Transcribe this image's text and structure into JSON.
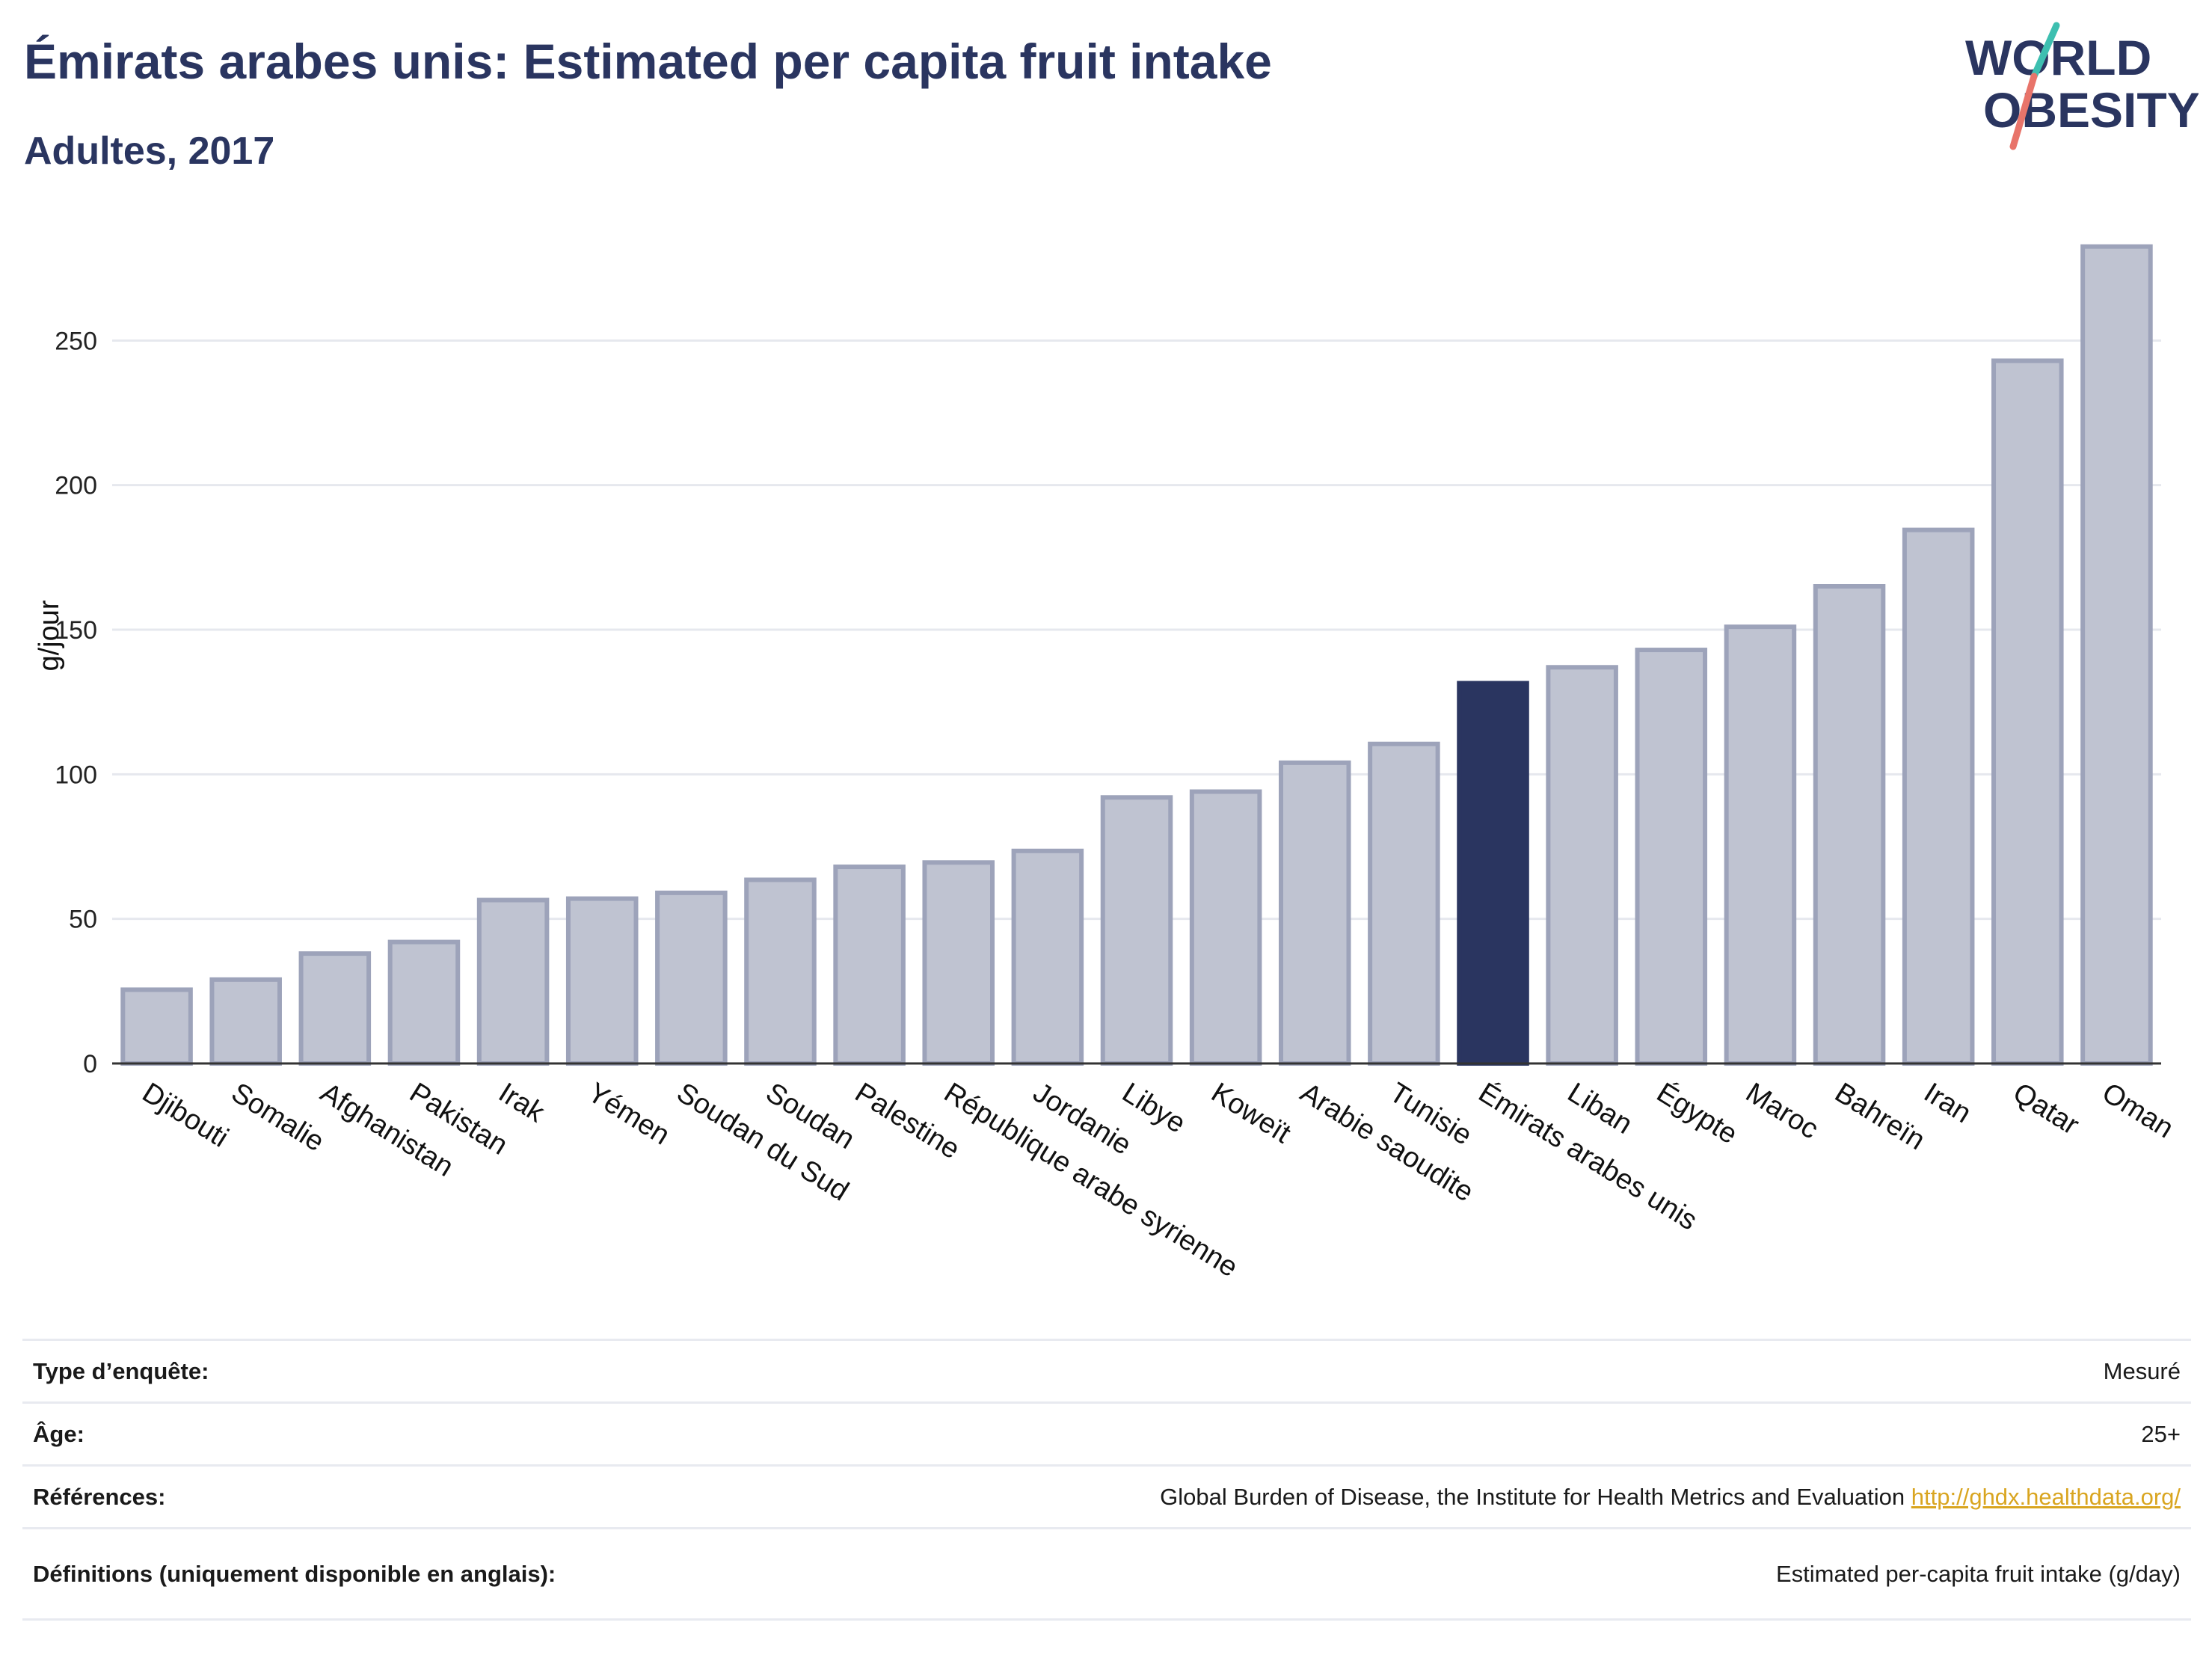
{
  "title": "Émirats arabes unis: Estimated per capita fruit intake",
  "subtitle": "Adultes, 2017",
  "logo": {
    "line1": "WORLD",
    "line2": "OBESITY",
    "slash_colors": [
      "#3dbfb0",
      "#e8746a"
    ],
    "text_color": "#2a3560"
  },
  "colors": {
    "bar_fill": "#bfc3d1",
    "bar_stroke": "#9da3ba",
    "highlight": "#2a3560",
    "grid": "#e6e8ee",
    "axis": "#333333"
  },
  "chart_data": {
    "type": "bar",
    "title": "",
    "xlabel": "",
    "ylabel": "g/jour",
    "ylim": [
      0,
      285
    ],
    "yticks": [
      0,
      50,
      100,
      150,
      200,
      250
    ],
    "grid": true,
    "highlight": "Émirats arabes unis",
    "categories": [
      "Djibouti",
      "Somalie",
      "Afghanistan",
      "Pakistan",
      "Irak",
      "Yémen",
      "Soudan du Sud",
      "Soudan",
      "Palestine",
      "République arabe syrienne",
      "Jordanie",
      "Libye",
      "Koweït",
      "Arabie saoudite",
      "Tunisie",
      "Émirats arabes unis",
      "Liban",
      "Égypte",
      "Maroc",
      "Bahreïn",
      "Iran",
      "Qatar",
      "Oman"
    ],
    "values": [
      25.5,
      29,
      38,
      42,
      56.5,
      57,
      59,
      63.5,
      68,
      69.5,
      73.5,
      92,
      94,
      104,
      110.5,
      131.5,
      137,
      143,
      151,
      165,
      184.5,
      243,
      282.5
    ]
  },
  "info_rows": [
    {
      "key": "Type d’enquête:",
      "value": "Mesuré"
    },
    {
      "key": "Âge:",
      "value": "25+"
    },
    {
      "key": "Références:",
      "value": "Global Burden of Disease, the Institute for Health Metrics and Evaluation",
      "link": "http://ghdx.healthdata.org/"
    },
    {
      "key": "Définitions (uniquement disponible en anglais):",
      "value": "Estimated per-capita fruit intake (g/day)"
    }
  ]
}
